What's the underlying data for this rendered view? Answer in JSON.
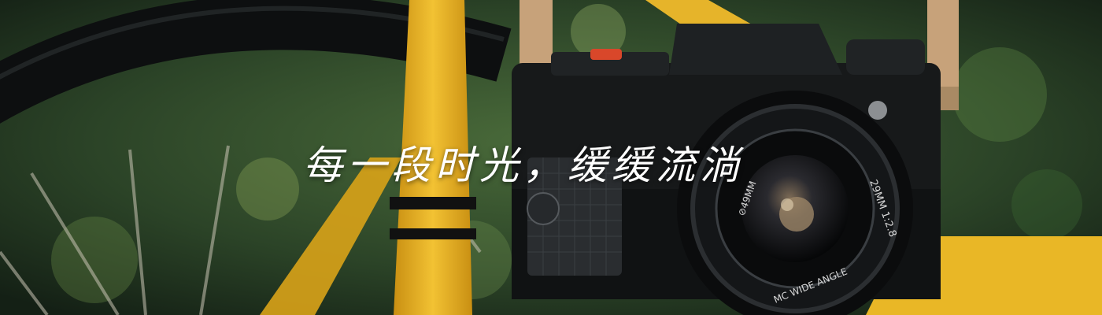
{
  "banner": {
    "slogan": "每一段时光，缓缓流淌",
    "lens_ring_text": "29MM 1:2.8",
    "lens_front_text": "MC WIDE ANGLE",
    "lens_side_text": "⊘49MM"
  },
  "colors": {
    "foliage": "#2e4a2a",
    "bike_yellow": "#e8b320",
    "camera_body": "#17191a",
    "strap": "#c7a27a"
  }
}
